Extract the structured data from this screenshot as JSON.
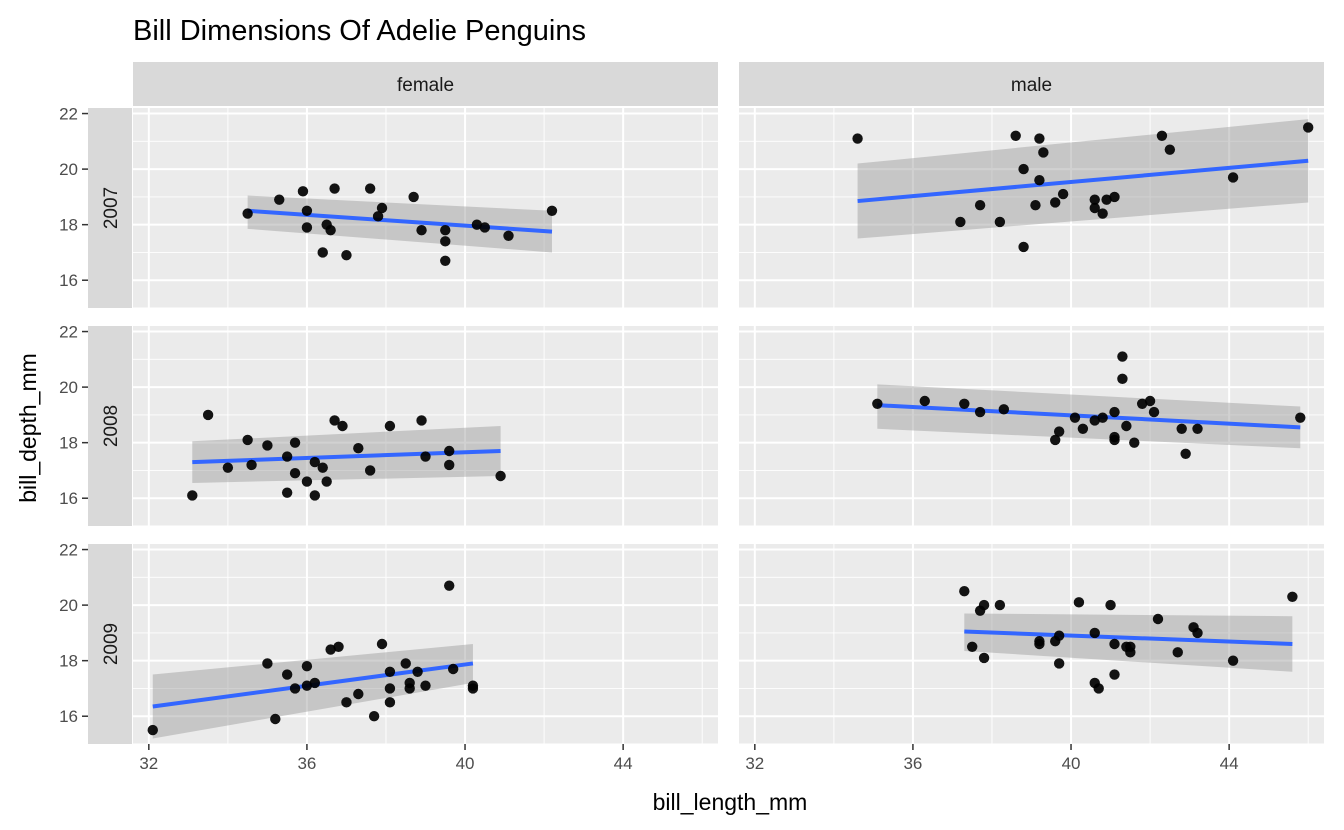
{
  "chart_data": {
    "type": "scatter",
    "title": "Bill Dimensions Of Adelie Penguins",
    "xlabel": "bill_length_mm",
    "ylabel": "bill_depth_mm",
    "xlim": [
      31.6,
      46.4
    ],
    "ylim": [
      15.0,
      22.2
    ],
    "x_ticks": [
      32,
      36,
      40,
      44
    ],
    "y_ticks": [
      16,
      18,
      20,
      22
    ],
    "facet_columns": [
      "female",
      "male"
    ],
    "facet_rows": [
      "2007",
      "2008",
      "2009"
    ],
    "grid": true,
    "smooth": "linear regression with confidence band",
    "colors": {
      "points": "#000000",
      "line": "#3366ff",
      "band": "#999999",
      "panel_bg": "#ebebeb",
      "strip_bg": "#d9d9d9",
      "grid": "#ffffff"
    },
    "panels": [
      {
        "sex": "female",
        "year": "2007",
        "line": {
          "x": [
            34.5,
            42.2
          ],
          "y": [
            18.5,
            17.75
          ]
        },
        "band": {
          "upper": [
            19.05,
            18.5
          ],
          "lower": [
            17.85,
            17.0
          ]
        },
        "points": [
          {
            "x": 34.5,
            "y": 18.4
          },
          {
            "x": 35.3,
            "y": 18.9
          },
          {
            "x": 35.9,
            "y": 19.2
          },
          {
            "x": 36.0,
            "y": 18.5
          },
          {
            "x": 36.0,
            "y": 17.9
          },
          {
            "x": 36.4,
            "y": 17.0
          },
          {
            "x": 36.5,
            "y": 18.0
          },
          {
            "x": 36.6,
            "y": 17.8
          },
          {
            "x": 36.7,
            "y": 19.3
          },
          {
            "x": 37.0,
            "y": 16.9
          },
          {
            "x": 37.6,
            "y": 19.3
          },
          {
            "x": 37.8,
            "y": 18.3
          },
          {
            "x": 37.9,
            "y": 18.6
          },
          {
            "x": 38.7,
            "y": 19.0
          },
          {
            "x": 38.9,
            "y": 17.8
          },
          {
            "x": 39.5,
            "y": 17.8
          },
          {
            "x": 39.5,
            "y": 17.4
          },
          {
            "x": 39.5,
            "y": 16.7
          },
          {
            "x": 40.3,
            "y": 18.0
          },
          {
            "x": 40.5,
            "y": 17.9
          },
          {
            "x": 41.1,
            "y": 17.6
          },
          {
            "x": 42.2,
            "y": 18.5
          }
        ]
      },
      {
        "sex": "male",
        "year": "2007",
        "line": {
          "x": [
            34.6,
            46.0
          ],
          "y": [
            18.85,
            20.3
          ]
        },
        "band": {
          "upper": [
            20.2,
            21.8
          ],
          "lower": [
            17.5,
            18.8
          ]
        },
        "points": [
          {
            "x": 34.6,
            "y": 21.1
          },
          {
            "x": 37.2,
            "y": 18.1
          },
          {
            "x": 37.7,
            "y": 18.7
          },
          {
            "x": 38.2,
            "y": 18.1
          },
          {
            "x": 38.6,
            "y": 21.2
          },
          {
            "x": 38.8,
            "y": 17.2
          },
          {
            "x": 38.8,
            "y": 20.0
          },
          {
            "x": 39.1,
            "y": 18.7
          },
          {
            "x": 39.2,
            "y": 21.1
          },
          {
            "x": 39.2,
            "y": 19.6
          },
          {
            "x": 39.3,
            "y": 20.6
          },
          {
            "x": 39.6,
            "y": 18.8
          },
          {
            "x": 39.8,
            "y": 19.1
          },
          {
            "x": 40.6,
            "y": 18.9
          },
          {
            "x": 40.6,
            "y": 18.6
          },
          {
            "x": 40.8,
            "y": 18.4
          },
          {
            "x": 40.9,
            "y": 18.9
          },
          {
            "x": 41.1,
            "y": 19.0
          },
          {
            "x": 42.3,
            "y": 21.2
          },
          {
            "x": 42.5,
            "y": 20.7
          },
          {
            "x": 44.1,
            "y": 19.7
          },
          {
            "x": 46.0,
            "y": 21.5
          }
        ]
      },
      {
        "sex": "female",
        "year": "2008",
        "line": {
          "x": [
            33.1,
            40.9
          ],
          "y": [
            17.3,
            17.7
          ]
        },
        "band": {
          "upper": [
            18.05,
            18.6
          ],
          "lower": [
            16.55,
            16.8
          ]
        },
        "points": [
          {
            "x": 33.1,
            "y": 16.1
          },
          {
            "x": 33.5,
            "y": 19.0
          },
          {
            "x": 34.0,
            "y": 17.1
          },
          {
            "x": 34.5,
            "y": 18.1
          },
          {
            "x": 34.6,
            "y": 17.2
          },
          {
            "x": 35.0,
            "y": 17.9
          },
          {
            "x": 35.5,
            "y": 16.2
          },
          {
            "x": 35.5,
            "y": 17.5
          },
          {
            "x": 35.7,
            "y": 16.9
          },
          {
            "x": 35.7,
            "y": 18.0
          },
          {
            "x": 36.0,
            "y": 16.6
          },
          {
            "x": 36.2,
            "y": 17.3
          },
          {
            "x": 36.2,
            "y": 16.1
          },
          {
            "x": 36.4,
            "y": 17.1
          },
          {
            "x": 36.5,
            "y": 16.6
          },
          {
            "x": 36.7,
            "y": 18.8
          },
          {
            "x": 36.9,
            "y": 18.6
          },
          {
            "x": 37.3,
            "y": 17.8
          },
          {
            "x": 37.6,
            "y": 17.0
          },
          {
            "x": 38.1,
            "y": 18.6
          },
          {
            "x": 38.9,
            "y": 18.8
          },
          {
            "x": 39.0,
            "y": 17.5
          },
          {
            "x": 39.6,
            "y": 17.7
          },
          {
            "x": 39.6,
            "y": 17.2
          },
          {
            "x": 40.9,
            "y": 16.8
          }
        ]
      },
      {
        "sex": "male",
        "year": "2008",
        "line": {
          "x": [
            35.1,
            45.8
          ],
          "y": [
            19.35,
            18.55
          ]
        },
        "band": {
          "upper": [
            20.1,
            19.3
          ],
          "lower": [
            18.5,
            17.8
          ]
        },
        "points": [
          {
            "x": 35.1,
            "y": 19.4
          },
          {
            "x": 36.3,
            "y": 19.5
          },
          {
            "x": 37.3,
            "y": 19.4
          },
          {
            "x": 37.7,
            "y": 19.1
          },
          {
            "x": 38.3,
            "y": 19.2
          },
          {
            "x": 39.6,
            "y": 18.1
          },
          {
            "x": 39.7,
            "y": 18.4
          },
          {
            "x": 40.1,
            "y": 18.9
          },
          {
            "x": 40.3,
            "y": 18.5
          },
          {
            "x": 40.6,
            "y": 18.8
          },
          {
            "x": 40.8,
            "y": 18.9
          },
          {
            "x": 41.1,
            "y": 19.1
          },
          {
            "x": 41.1,
            "y": 18.2
          },
          {
            "x": 41.1,
            "y": 18.1
          },
          {
            "x": 41.3,
            "y": 21.1
          },
          {
            "x": 41.3,
            "y": 20.3
          },
          {
            "x": 41.4,
            "y": 18.6
          },
          {
            "x": 41.6,
            "y": 18.0
          },
          {
            "x": 41.8,
            "y": 19.4
          },
          {
            "x": 42.0,
            "y": 19.5
          },
          {
            "x": 42.1,
            "y": 19.1
          },
          {
            "x": 42.8,
            "y": 18.5
          },
          {
            "x": 42.9,
            "y": 17.6
          },
          {
            "x": 43.2,
            "y": 18.5
          },
          {
            "x": 45.8,
            "y": 18.9
          }
        ]
      },
      {
        "sex": "female",
        "year": "2009",
        "line": {
          "x": [
            32.1,
            40.2
          ],
          "y": [
            16.35,
            17.9
          ]
        },
        "band": {
          "upper": [
            17.5,
            18.6
          ],
          "lower": [
            15.2,
            17.2
          ]
        },
        "points": [
          {
            "x": 32.1,
            "y": 15.5
          },
          {
            "x": 35.0,
            "y": 17.9
          },
          {
            "x": 35.2,
            "y": 15.9
          },
          {
            "x": 35.5,
            "y": 17.5
          },
          {
            "x": 35.7,
            "y": 17.0
          },
          {
            "x": 36.0,
            "y": 17.8
          },
          {
            "x": 36.0,
            "y": 17.1
          },
          {
            "x": 36.2,
            "y": 17.2
          },
          {
            "x": 36.6,
            "y": 18.4
          },
          {
            "x": 36.8,
            "y": 18.5
          },
          {
            "x": 37.0,
            "y": 16.5
          },
          {
            "x": 37.3,
            "y": 16.8
          },
          {
            "x": 37.7,
            "y": 16.0
          },
          {
            "x": 37.9,
            "y": 18.6
          },
          {
            "x": 38.1,
            "y": 17.6
          },
          {
            "x": 38.1,
            "y": 17.0
          },
          {
            "x": 38.1,
            "y": 16.5
          },
          {
            "x": 38.5,
            "y": 17.9
          },
          {
            "x": 38.6,
            "y": 17.2
          },
          {
            "x": 38.6,
            "y": 17.0
          },
          {
            "x": 38.8,
            "y": 17.6
          },
          {
            "x": 39.0,
            "y": 17.1
          },
          {
            "x": 39.6,
            "y": 20.7
          },
          {
            "x": 39.7,
            "y": 17.7
          },
          {
            "x": 40.2,
            "y": 17.1
          },
          {
            "x": 40.2,
            "y": 17.0
          }
        ]
      },
      {
        "sex": "male",
        "year": "2009",
        "line": {
          "x": [
            37.3,
            45.6
          ],
          "y": [
            19.05,
            18.6
          ]
        },
        "band": {
          "upper": [
            19.7,
            19.6
          ],
          "lower": [
            18.35,
            17.6
          ]
        },
        "points": [
          {
            "x": 37.3,
            "y": 20.5
          },
          {
            "x": 37.5,
            "y": 18.5
          },
          {
            "x": 37.7,
            "y": 19.8
          },
          {
            "x": 37.8,
            "y": 20.0
          },
          {
            "x": 37.8,
            "y": 18.1
          },
          {
            "x": 38.2,
            "y": 20.0
          },
          {
            "x": 39.2,
            "y": 18.7
          },
          {
            "x": 39.2,
            "y": 18.6
          },
          {
            "x": 39.6,
            "y": 18.7
          },
          {
            "x": 39.7,
            "y": 18.9
          },
          {
            "x": 39.7,
            "y": 17.9
          },
          {
            "x": 40.2,
            "y": 20.1
          },
          {
            "x": 40.6,
            "y": 19.0
          },
          {
            "x": 40.6,
            "y": 17.2
          },
          {
            "x": 40.7,
            "y": 17.0
          },
          {
            "x": 41.0,
            "y": 20.0
          },
          {
            "x": 41.1,
            "y": 18.6
          },
          {
            "x": 41.1,
            "y": 17.5
          },
          {
            "x": 41.4,
            "y": 18.5
          },
          {
            "x": 41.5,
            "y": 18.5
          },
          {
            "x": 41.5,
            "y": 18.3
          },
          {
            "x": 42.2,
            "y": 19.5
          },
          {
            "x": 42.7,
            "y": 18.3
          },
          {
            "x": 43.1,
            "y": 19.2
          },
          {
            "x": 43.2,
            "y": 19.0
          },
          {
            "x": 44.1,
            "y": 18.0
          },
          {
            "x": 45.6,
            "y": 20.3
          }
        ]
      }
    ]
  }
}
